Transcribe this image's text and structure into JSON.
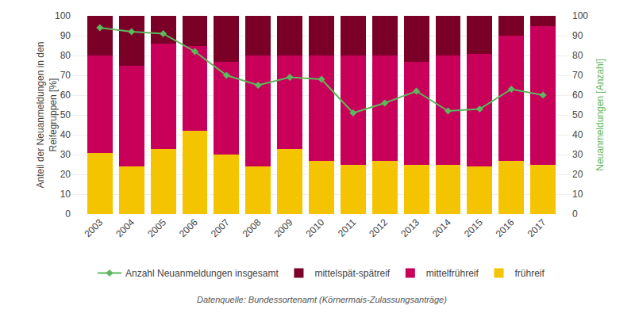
{
  "chart_data": {
    "type": "bar",
    "stacked": true,
    "categories": [
      "2003",
      "2004",
      "2005",
      "2006",
      "2007",
      "2008",
      "2009",
      "2010",
      "2011",
      "2012",
      "2013",
      "2014",
      "2015",
      "2016",
      "2017"
    ],
    "series": [
      {
        "name": "frühreif",
        "type": "bar",
        "color": "#F5C400",
        "values": [
          31,
          24,
          33,
          42,
          30,
          24,
          33,
          27,
          25,
          27,
          25,
          25,
          24,
          27,
          25
        ]
      },
      {
        "name": "mittelfrühreif",
        "type": "bar",
        "color": "#C8005A",
        "values": [
          49,
          51,
          53,
          43,
          47,
          56,
          47,
          53,
          55,
          53,
          52,
          55,
          57,
          63,
          70
        ]
      },
      {
        "name": "mittelspät-spätreif",
        "type": "bar",
        "color": "#7A0028",
        "values": [
          20,
          25,
          14,
          15,
          23,
          20,
          20,
          20,
          20,
          20,
          23,
          20,
          19,
          10,
          5
        ]
      },
      {
        "name": "Anzahl Neuanmeldungen insgesamt",
        "type": "line",
        "axis": "y2",
        "color": "#5CB85C",
        "marker": "diamond",
        "values": [
          94,
          92,
          91,
          82,
          70,
          65,
          69,
          68,
          51,
          56,
          62,
          52,
          53,
          63,
          60
        ]
      }
    ],
    "ylabel": "Anteil der Neuanmeldungen in den\nReifegruppen [%]",
    "y2label": "Neuanmeldungen [Anzahl]",
    "ylim": [
      0,
      100
    ],
    "yticks": [
      0,
      10,
      20,
      30,
      40,
      50,
      60,
      70,
      80,
      90,
      100
    ],
    "y2lim": [
      0,
      100
    ],
    "y2ticks": [
      0,
      10,
      20,
      30,
      40,
      50,
      60,
      70,
      80,
      90,
      100
    ],
    "grid": true,
    "legend": "bottom",
    "annotations": [
      "Datenquelle: Bundessortenamt (Körnermais-Zulassungsanträge)"
    ]
  }
}
